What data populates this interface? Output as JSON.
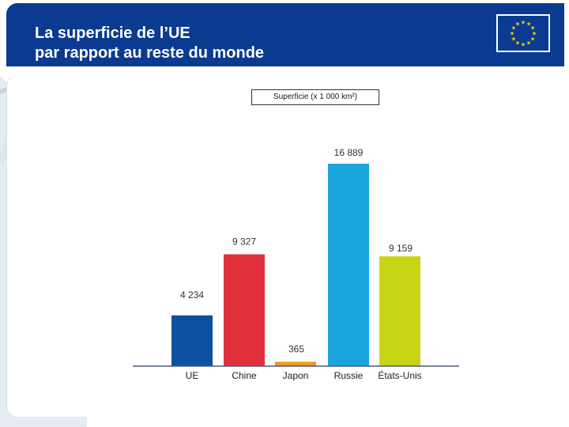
{
  "title": {
    "line1": "La superficie de l’UE",
    "line2": "par rapport au reste du monde"
  },
  "colors": {
    "header": "#0b3a91",
    "flag_star": "#ffd400"
  },
  "chart_data": {
    "type": "bar",
    "legend": "Superficie (x 1 000 km²)",
    "categories": [
      "UE",
      "Chine",
      "Japon",
      "Russie",
      "États-Unis"
    ],
    "values": [
      4234,
      9327,
      365,
      16889,
      9159
    ],
    "value_labels": [
      "4 234",
      "9 327",
      "365",
      "16 889",
      "9 159"
    ],
    "colors": [
      "#0d4fa0",
      "#e0303c",
      "#ee9a1a",
      "#1aa6dc",
      "#c8d416"
    ],
    "ylim": [
      0,
      16889
    ],
    "grid": false
  }
}
